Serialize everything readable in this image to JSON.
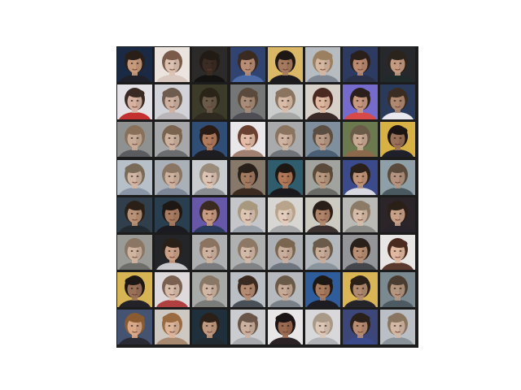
{
  "figure": {
    "rows": 8,
    "cols": 8,
    "tiles": [
      {
        "bg": "#1b2a44",
        "hair": "#2a1f18",
        "skin": "#c79a7c",
        "wear": "#20202a"
      },
      {
        "bg": "#e9e2dd",
        "hair": "#7a5a48",
        "skin": "#dcc0b0",
        "wear": "#d8c8c0"
      },
      {
        "bg": "#141210",
        "hair": "#221a14",
        "skin": "#3a2c22",
        "wear": "#141210"
      },
      {
        "bg": "#2d3f6e",
        "hair": "#3a2a20",
        "skin": "#b88d74",
        "wear": "#4b6aa6"
      },
      {
        "bg": "#d9b35a",
        "hair": "#1e1814",
        "skin": "#a57a5e",
        "wear": "#1a1a1f"
      },
      {
        "bg": "#b7bcc0",
        "hair": "#9a8060",
        "skin": "#d5b7a0",
        "wear": "#7d8692"
      },
      {
        "bg": "#22305a",
        "hair": "#2a1f1a",
        "skin": "#b98a70",
        "wear": "#2b3148"
      },
      {
        "bg": "#0e1014",
        "hair": "#2b241c",
        "skin": "#c49a80",
        "wear": "#1f2a2a"
      },
      {
        "bg": "#e4e1e6",
        "hair": "#3a2a24",
        "skin": "#d7b2a0",
        "wear": "#c43030"
      },
      {
        "bg": "#cfd0d6",
        "hair": "#6e5c4e",
        "skin": "#cdb0a0",
        "wear": "#b8b4b8"
      },
      {
        "bg": "#3c3a28",
        "hair": "#2a2418",
        "skin": "#6a5a48",
        "wear": "#2e2a20"
      },
      {
        "bg": "#6e7070",
        "hair": "#5a4a3c",
        "skin": "#a88c78",
        "wear": "#4e4e54"
      },
      {
        "bg": "#c4c8c6",
        "hair": "#8a7460",
        "skin": "#d8bca8",
        "wear": "#a6a8a8"
      },
      {
        "bg": "#d8d0c8",
        "hair": "#4a2a20",
        "skin": "#e0b8a0",
        "wear": "#3a2a28"
      },
      {
        "bg": "#6a60c8",
        "hair": "#2a1f1a",
        "skin": "#c89880",
        "wear": "#d84a4a"
      },
      {
        "bg": "#2a3a5a",
        "hair": "#3a2c22",
        "skin": "#b08870",
        "wear": "#e8e8ee"
      },
      {
        "bg": "#8a8c8c",
        "hair": "#8a7058",
        "skin": "#c8ac98",
        "wear": "#5a5c60"
      },
      {
        "bg": "#9c9ea0",
        "hair": "#7a6450",
        "skin": "#cdb2a0",
        "wear": "#6a6c70"
      },
      {
        "bg": "#2c4a72",
        "hair": "#2a1a14",
        "skin": "#b07a5c",
        "wear": "#1e1e22"
      },
      {
        "bg": "#e8e6e8",
        "hair": "#6a4030",
        "skin": "#e2bca6",
        "wear": "#a08070"
      },
      {
        "bg": "#a8aaac",
        "hair": "#8a7460",
        "skin": "#d0b4a2",
        "wear": "#707478"
      },
      {
        "bg": "#7a8a98",
        "hair": "#5a4e42",
        "skin": "#b89a86",
        "wear": "#4a5e74"
      },
      {
        "bg": "#5a6a3a",
        "hair": "#6a5a48",
        "skin": "#c8aa94",
        "wear": "#8a6a4a"
      },
      {
        "bg": "#d8b040",
        "hair": "#1a1414",
        "skin": "#9a7058",
        "wear": "#20202a"
      },
      {
        "bg": "#b2bac4",
        "hair": "#7a6a58",
        "skin": "#d2b6a4",
        "wear": "#8a96a8"
      },
      {
        "bg": "#aab0b8",
        "hair": "#8a7462",
        "skin": "#ceb2a0",
        "wear": "#7c8696"
      },
      {
        "bg": "#c6cacc",
        "hair": "#9a8c7a",
        "skin": "#dcc4b4",
        "wear": "#8a8e92"
      },
      {
        "bg": "#7a6a58",
        "hair": "#2a201a",
        "skin": "#a27a60",
        "wear": "#3a2a20"
      },
      {
        "bg": "#2a5a6a",
        "hair": "#1e1814",
        "skin": "#b07858",
        "wear": "#1a1a1e"
      },
      {
        "bg": "#9a9c98",
        "hair": "#5a4a3a",
        "skin": "#b8987e",
        "wear": "#6a6a66"
      },
      {
        "bg": "#3a4a8a",
        "hair": "#2a201a",
        "skin": "#c09478",
        "wear": "#d8d8e0"
      },
      {
        "bg": "#8a9aa4",
        "hair": "#5a4a3c",
        "skin": "#b49480",
        "wear": "#4a5860"
      },
      {
        "bg": "#1a2a38",
        "hair": "#2a2018",
        "skin": "#b89276",
        "wear": "#222a30"
      },
      {
        "bg": "#243a4a",
        "hair": "#1e1814",
        "skin": "#a87c60",
        "wear": "#1a1a20"
      },
      {
        "bg": "#5a4aa0",
        "hair": "#3a2a22",
        "skin": "#c89a80",
        "wear": "#2a3a5a"
      },
      {
        "bg": "#c4c6ca",
        "hair": "#a8987e",
        "skin": "#dcc4b2",
        "wear": "#9aa0aa"
      },
      {
        "bg": "#d6d4d0",
        "hair": "#b8a48a",
        "skin": "#e2ccbc",
        "wear": "#a6a8aa"
      },
      {
        "bg": "#c8c4bc",
        "hair": "#2a1e18",
        "skin": "#b08468",
        "wear": "#3a3030"
      },
      {
        "bg": "#b8b8b4",
        "hair": "#8a7a66",
        "skin": "#d6bca8",
        "wear": "#8a8a86"
      },
      {
        "bg": "#1a1418",
        "hair": "#2a2018",
        "skin": "#c8a088",
        "wear": "#28222a"
      },
      {
        "bg": "#9a9a96",
        "hair": "#8a7662",
        "skin": "#d0b4a0",
        "wear": "#6e6e6a"
      },
      {
        "bg": "#181a1e",
        "hair": "#2a2018",
        "skin": "#caa088",
        "wear": "#c8c8cc"
      },
      {
        "bg": "#a4a6a8",
        "hair": "#8a7460",
        "skin": "#ceb2a0",
        "wear": "#7a7c80"
      },
      {
        "bg": "#aeb0b0",
        "hair": "#8c7864",
        "skin": "#d2b8a6",
        "wear": "#808284"
      },
      {
        "bg": "#a6aab0",
        "hair": "#7a6650",
        "skin": "#caae9c",
        "wear": "#6e7680"
      },
      {
        "bg": "#b2b8be",
        "hair": "#6a5a4a",
        "skin": "#c8ac98",
        "wear": "#8a949c"
      },
      {
        "bg": "#8e9094",
        "hair": "#2a201a",
        "skin": "#b88e74",
        "wear": "#44464c"
      },
      {
        "bg": "#e6e4e2",
        "hair": "#4a2a1e",
        "skin": "#e0b8a0",
        "wear": "#5a3a2e"
      },
      {
        "bg": "#d8b450",
        "hair": "#1e1814",
        "skin": "#9a7058",
        "wear": "#222228"
      },
      {
        "bg": "#dcd8da",
        "hair": "#7a6050",
        "skin": "#d8bcaa",
        "wear": "#b04040"
      },
      {
        "bg": "#a8aaa8",
        "hair": "#8a7866",
        "skin": "#d0b6a4",
        "wear": "#7a7c7a"
      },
      {
        "bg": "#b6bcc2",
        "hair": "#3a2a20",
        "skin": "#b48a70",
        "wear": "#4a5058"
      },
      {
        "bg": "#aeb2b6",
        "hair": "#6a5a48",
        "skin": "#c6aa96",
        "wear": "#7a8088"
      },
      {
        "bg": "#2a5a9a",
        "hair": "#1e1814",
        "skin": "#a87a5e",
        "wear": "#1c1c22"
      },
      {
        "bg": "#d8b048",
        "hair": "#2a2018",
        "skin": "#b08a70",
        "wear": "#24242a"
      },
      {
        "bg": "#7a8a90",
        "hair": "#4a3c30",
        "skin": "#b49680",
        "wear": "#4e5a62"
      },
      {
        "bg": "#3a4a6a",
        "hair": "#8a5a30",
        "skin": "#d8a888",
        "wear": "#2a2a34"
      },
      {
        "bg": "#c8c2bc",
        "hair": "#9a6a40",
        "skin": "#dcb49a",
        "wear": "#a88a70"
      },
      {
        "bg": "#1a2a38",
        "hair": "#2a2018",
        "skin": "#c09a80",
        "wear": "#222a32"
      },
      {
        "bg": "#c6c8cc",
        "hair": "#6a5648",
        "skin": "#ccb09e",
        "wear": "#a8aaae"
      },
      {
        "bg": "#e8e6e6",
        "hair": "#1a1414",
        "skin": "#9a6a50",
        "wear": "#2a2224"
      },
      {
        "bg": "#d6d6d8",
        "hair": "#a89a86",
        "skin": "#dcc6b6",
        "wear": "#b0b2b6"
      },
      {
        "bg": "#28326a",
        "hair": "#2a201a",
        "skin": "#b88c72",
        "wear": "#3a4a8a"
      },
      {
        "bg": "#b8bec4",
        "hair": "#8a7660",
        "skin": "#d4b8a6",
        "wear": "#8a929a"
      }
    ]
  }
}
